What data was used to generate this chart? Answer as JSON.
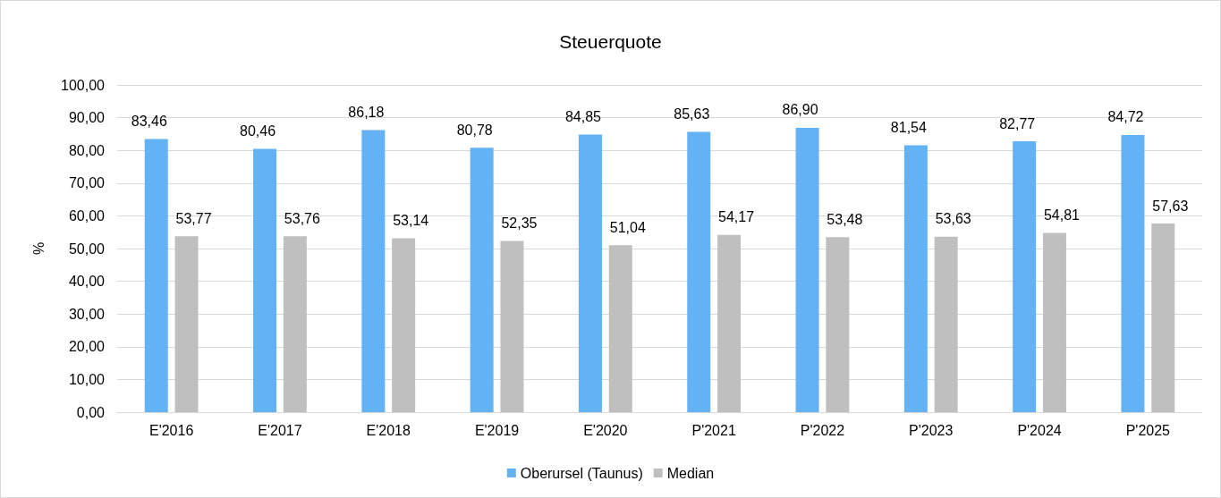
{
  "chart_data": {
    "type": "bar",
    "title": "Steuerquote",
    "ylabel": "%",
    "categories": [
      "E'2016",
      "E'2017",
      "E'2018",
      "E'2019",
      "E'2020",
      "P'2021",
      "P'2022",
      "P'2023",
      "P'2024",
      "P'2025"
    ],
    "series": [
      {
        "name": "Oberursel (Taunus)",
        "color": "#63b3f4",
        "values": [
          83.46,
          80.46,
          86.18,
          80.78,
          84.85,
          85.63,
          86.9,
          81.54,
          82.77,
          84.72
        ],
        "value_labels": [
          "83,46",
          "80,46",
          "86,18",
          "80,78",
          "84,85",
          "85,63",
          "86,90",
          "81,54",
          "82,77",
          "84,72"
        ]
      },
      {
        "name": "Median",
        "color": "#bfbfbf",
        "values": [
          53.77,
          53.76,
          53.14,
          52.35,
          51.04,
          54.17,
          53.48,
          53.63,
          54.81,
          57.63
        ],
        "value_labels": [
          "53,77",
          "53,76",
          "53,14",
          "52,35",
          "51,04",
          "54,17",
          "53,48",
          "53,63",
          "54,81",
          "57,63"
        ]
      }
    ],
    "ylim": [
      0,
      100
    ],
    "yticks": [
      {
        "value": 0,
        "label": "0,00"
      },
      {
        "value": 10,
        "label": "10,00"
      },
      {
        "value": 20,
        "label": "20,00"
      },
      {
        "value": 30,
        "label": "30,00"
      },
      {
        "value": 40,
        "label": "40,00"
      },
      {
        "value": 50,
        "label": "50,00"
      },
      {
        "value": 60,
        "label": "60,00"
      },
      {
        "value": 70,
        "label": "70,00"
      },
      {
        "value": 80,
        "label": "80,00"
      },
      {
        "value": 90,
        "label": "90,00"
      },
      {
        "value": 100,
        "label": "100,00"
      }
    ],
    "grid": "y",
    "legend": "bottom"
  }
}
